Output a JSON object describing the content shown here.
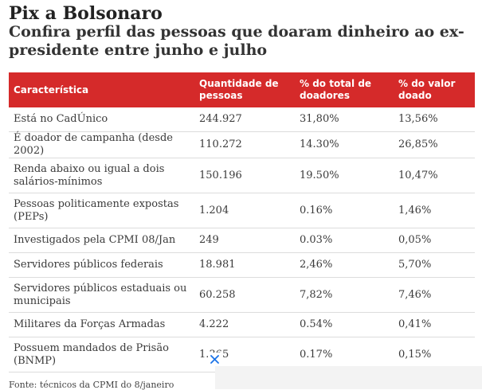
{
  "title": "Pix a Bolsonaro",
  "subtitle": "Confira perfil das pessoas que doaram dinheiro ao ex-presidente entre junho e julho",
  "table": {
    "headers": [
      "Característica",
      "Quantidade de pessoas",
      "% do total de doadores",
      "% do valor doado"
    ],
    "rows": [
      [
        "Está no CadÚnico",
        "244.927",
        "31,80%",
        "13,56%"
      ],
      [
        "É doador de campanha (desde 2002)",
        "110.272",
        "14.30%",
        "26,85%"
      ],
      [
        "Renda abaixo ou igual a dois salários-mínimos",
        "150.196",
        "19.50%",
        "10,47%"
      ],
      [
        "Pessoas politicamente expostas (PEPs)",
        "1.204",
        "0.16%",
        "1,46%"
      ],
      [
        "Investigados pela CPMI 08/Jan",
        "249",
        "0.03%",
        "0,05%"
      ],
      [
        "Servidores públicos federais",
        "18.981",
        "2,46%",
        "5,70%"
      ],
      [
        "Servidores públicos estaduais ou municipais",
        "60.258",
        "7,82%",
        "7,46%"
      ],
      [
        "Militares da Forças Armadas",
        "4.222",
        "0.54%",
        "0,41%"
      ],
      [
        "Possuem mandados de Prisão (BNMP)",
        "1.365",
        "0.17%",
        "0,15%"
      ]
    ]
  },
  "source": "Fonte: técnicos da CPMI do 8/janeiro",
  "colors": {
    "header_bg": "#d52a2a",
    "header_text": "#ffffff",
    "close_icon": "#1a73e8"
  },
  "icons": {
    "ad_close": "close-icon"
  }
}
